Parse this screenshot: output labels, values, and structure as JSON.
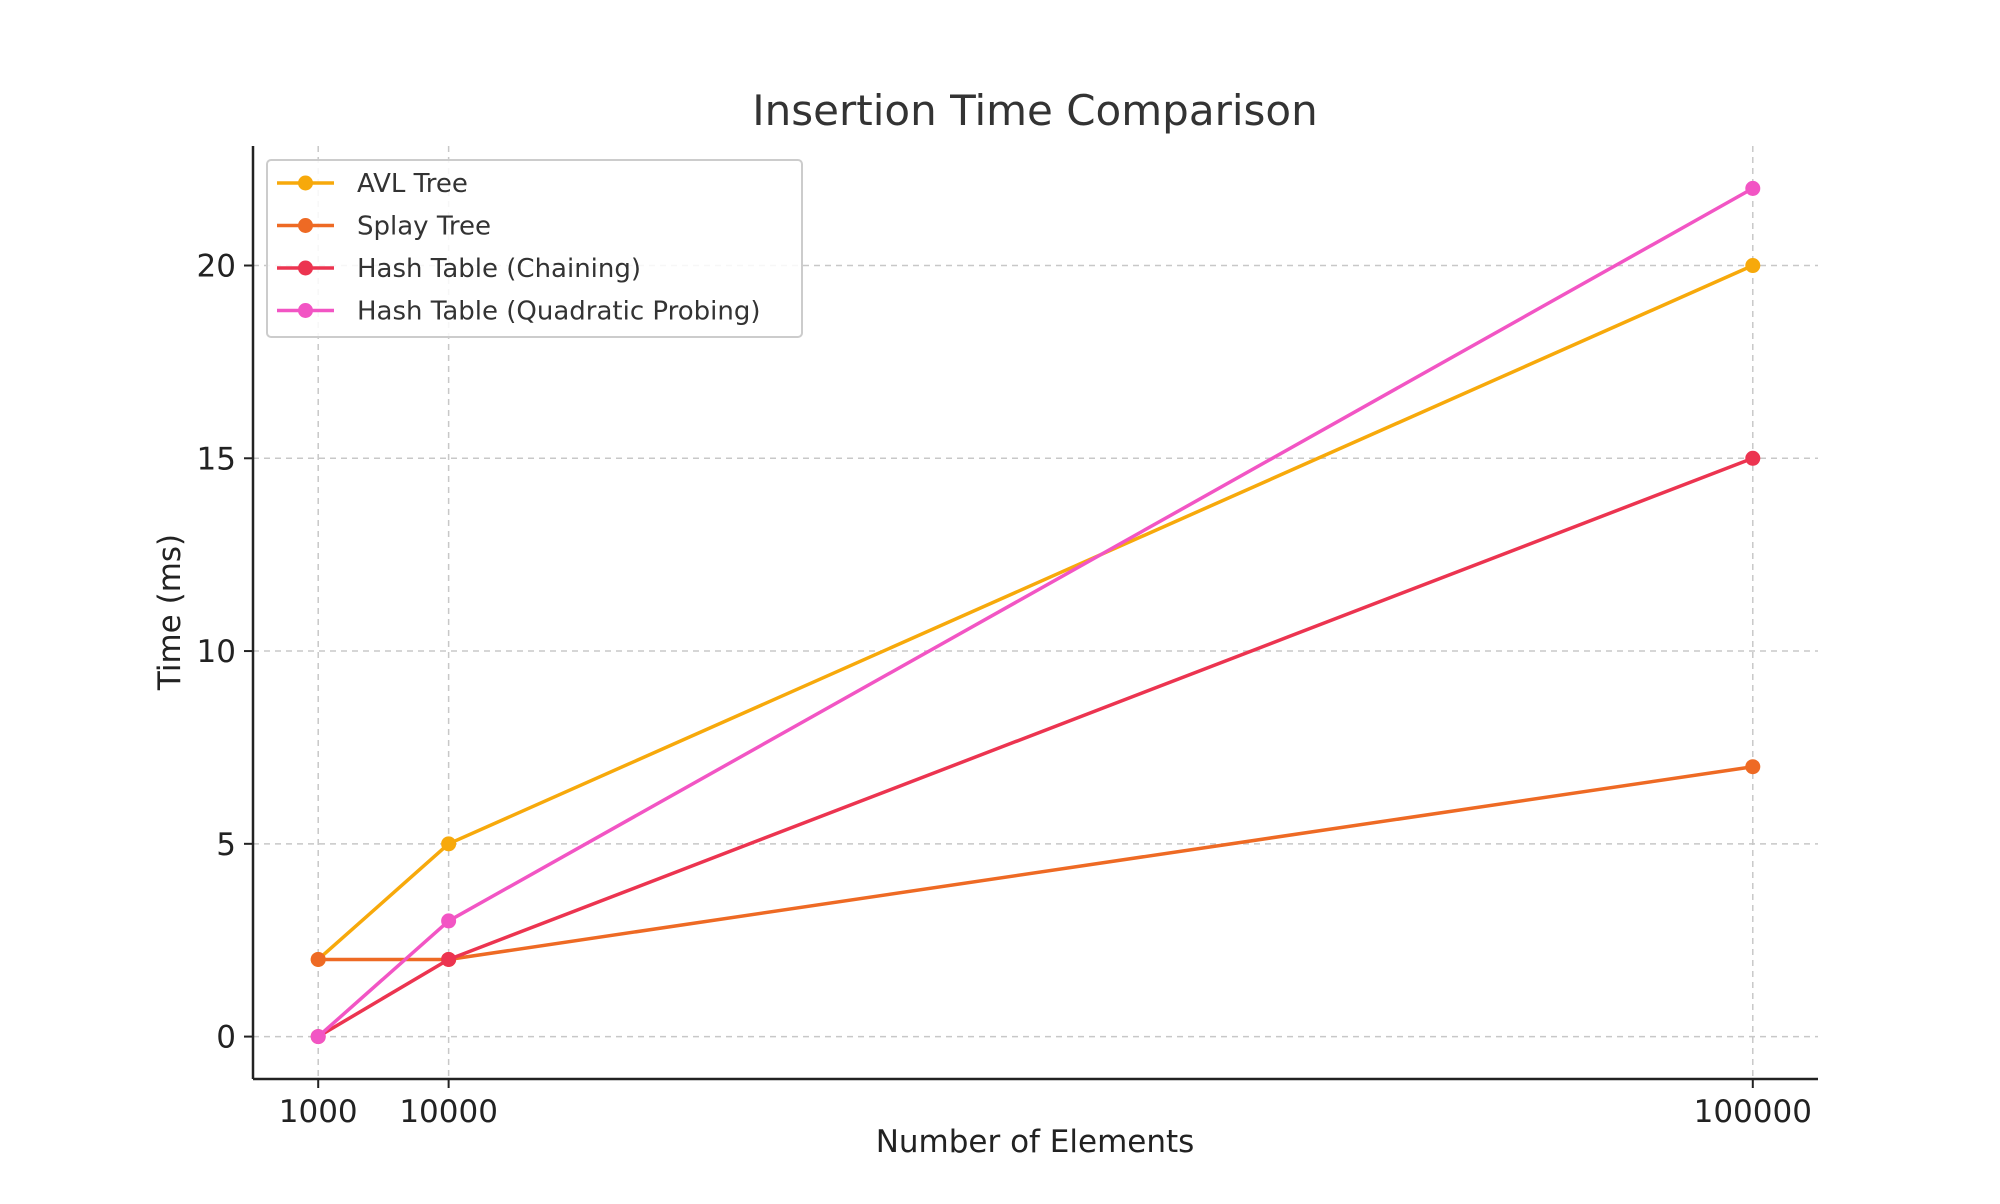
{
  "chart_data": {
    "type": "line",
    "title": "Insertion Time Comparison",
    "xlabel": "Number of Elements",
    "ylabel": "Time (ms)",
    "x": [
      1000,
      10000,
      100000
    ],
    "x_tick_labels": [
      "1000",
      "10000",
      "100000"
    ],
    "y_ticks": [
      0,
      5,
      10,
      15,
      20
    ],
    "ylim": [
      -1.1,
      23.1
    ],
    "xlim": [
      -3500,
      104500
    ],
    "grid": true,
    "legend_position": "upper-left",
    "series": [
      {
        "name": "AVL Tree",
        "color": "#f7a90b",
        "values": [
          2,
          5,
          20
        ]
      },
      {
        "name": "Splay Tree",
        "color": "#ee6a24",
        "values": [
          2,
          2,
          7
        ]
      },
      {
        "name": "Hash Table (Chaining)",
        "color": "#ec3450",
        "values": [
          0,
          2,
          15
        ]
      },
      {
        "name": "Hash Table (Quadratic Probing)",
        "color": "#f255c4",
        "values": [
          0,
          3,
          22
        ]
      }
    ]
  }
}
